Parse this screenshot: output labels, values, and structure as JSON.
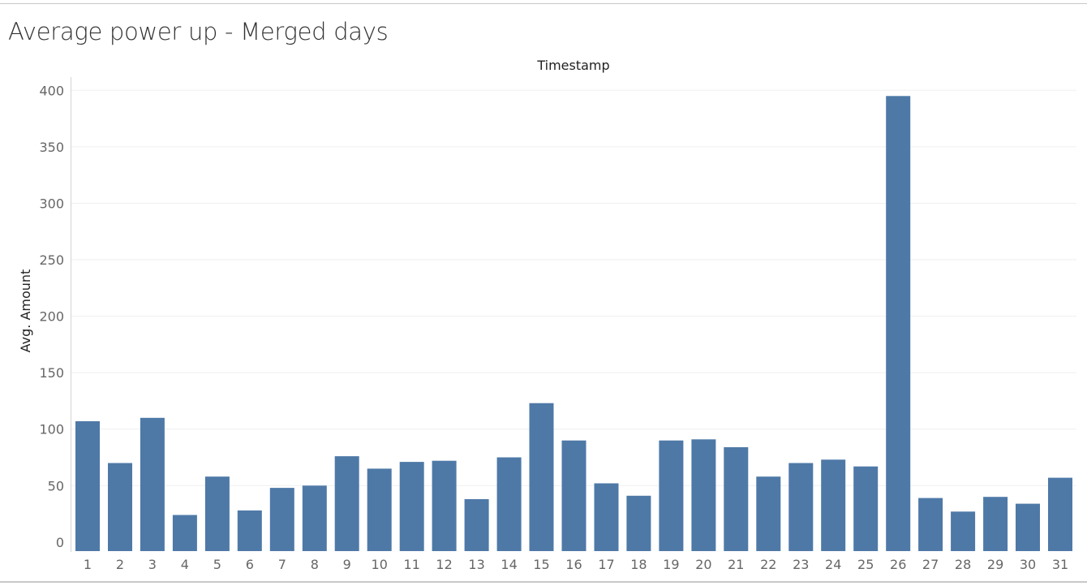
{
  "title": "Average power up - Merged days",
  "chart_data": {
    "type": "bar",
    "title": "Average power up - Merged days",
    "xlabel": "Timestamp",
    "ylabel": "Avg. Amount",
    "categories": [
      "1",
      "2",
      "3",
      "4",
      "5",
      "6",
      "7",
      "8",
      "9",
      "10",
      "11",
      "12",
      "13",
      "14",
      "15",
      "16",
      "17",
      "18",
      "19",
      "20",
      "21",
      "22",
      "23",
      "24",
      "25",
      "26",
      "27",
      "28",
      "29",
      "30",
      "31"
    ],
    "series": [
      {
        "values": [
          107,
          70,
          110,
          24,
          58,
          28,
          48,
          50,
          76,
          65,
          71,
          72,
          38,
          75,
          123,
          90,
          52,
          41,
          90,
          91,
          84,
          58,
          70,
          73,
          67,
          395,
          39,
          27,
          40,
          34,
          57
        ],
        "color": "#4e79a7"
      }
    ],
    "yticks": [
      0,
      50,
      100,
      150,
      200,
      250,
      300,
      350,
      400
    ],
    "ylim": [
      -8,
      406
    ],
    "grid": true,
    "legend": "none"
  }
}
